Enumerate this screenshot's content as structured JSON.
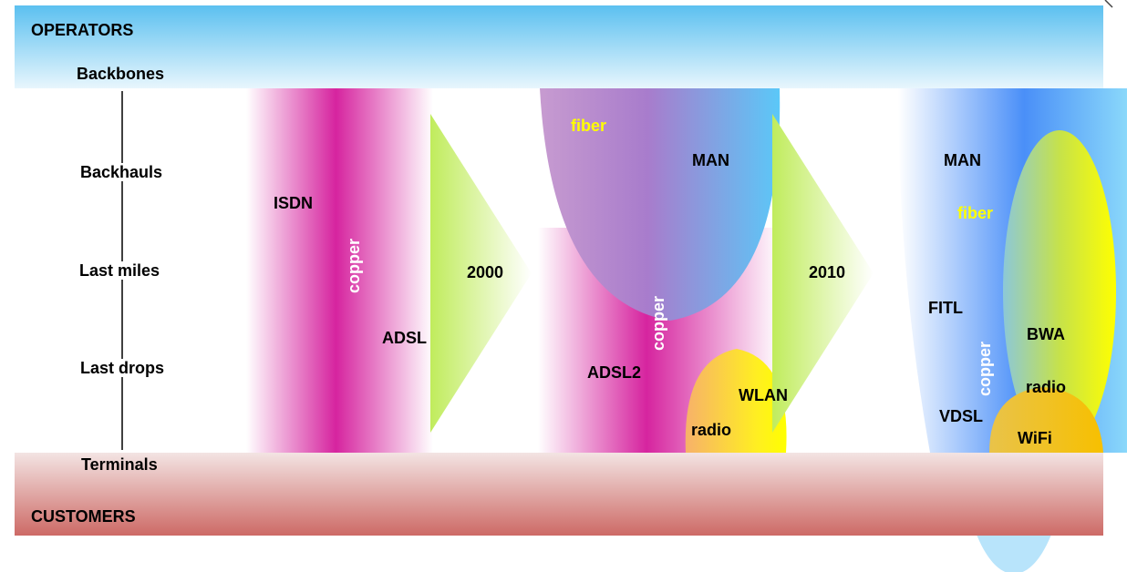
{
  "bands": {
    "top": "OPERATORS",
    "bottom": "CUSTOMERS"
  },
  "levels": [
    "Backbones",
    "Backhauls",
    "Last miles",
    "Last drops",
    "Terminals"
  ],
  "era1": {
    "year": "2000",
    "isdn": "ISDN",
    "copper": "copper",
    "adsl": "ADSL"
  },
  "era2": {
    "fiber": "fiber",
    "man": "MAN",
    "copper": "copper",
    "adsl2": "ADSL2",
    "wlan": "WLAN",
    "radio": "radio",
    "year": "2010"
  },
  "era3": {
    "man": "MAN",
    "fiber": "fiber",
    "fitl": "FITL",
    "copper": "copper",
    "bwa": "BWA",
    "radio": "radio",
    "vdsl": "VDSL",
    "wifi": "WiFi"
  },
  "colors": {
    "operators_band": "#5bc0f0",
    "customers_band": "#cd6a66",
    "copper": "#d6249f",
    "arrow": "#c6ef6a",
    "fiber_blue": "#4a90f8",
    "radio_yellow": "#ffff00"
  }
}
